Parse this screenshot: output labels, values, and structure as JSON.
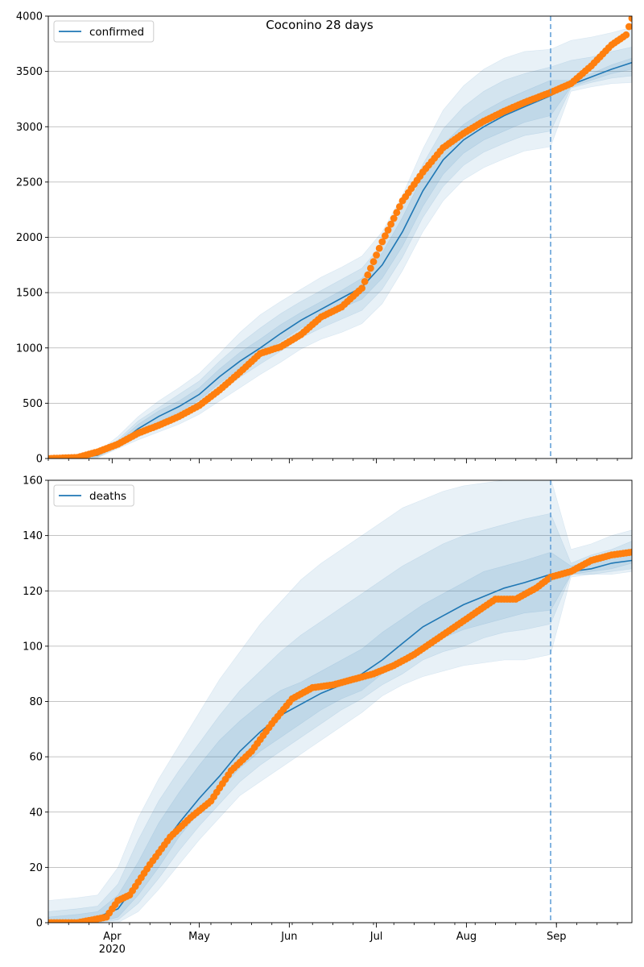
{
  "figure": {
    "suptitle": "Coconino 28 days"
  },
  "colors": {
    "model_line": "#1f77b4",
    "observed_points": "#ff7f0e",
    "band": "#1f77b4",
    "grid": "#b0b0b0",
    "forecast_marker": "#5b9bd5"
  },
  "x_axis": {
    "date_range": [
      "2020-03-10",
      "2020-09-27"
    ],
    "ticks": [
      {
        "date": "2020-04-01",
        "label": "Apr",
        "sublabel": "2020"
      },
      {
        "date": "2020-05-01",
        "label": "May",
        "sublabel": ""
      },
      {
        "date": "2020-06-01",
        "label": "Jun",
        "sublabel": ""
      },
      {
        "date": "2020-07-01",
        "label": "Jul",
        "sublabel": ""
      },
      {
        "date": "2020-08-01",
        "label": "Aug",
        "sublabel": ""
      },
      {
        "date": "2020-09-01",
        "label": "Sep",
        "sublabel": ""
      }
    ],
    "minor_tick_interval_days": 7,
    "forecast_start": "2020-08-30"
  },
  "chart_data": [
    {
      "type": "line",
      "title": "",
      "legend": {
        "label": "confirmed",
        "placement": "top-left"
      },
      "ylim": [
        0,
        4000
      ],
      "yticks": [
        0,
        500,
        1000,
        1500,
        2000,
        2500,
        3000,
        3500,
        4000
      ],
      "grid": "horizontal",
      "model_median": {
        "x": [
          "2020-03-10",
          "2020-03-20",
          "2020-03-27",
          "2020-04-03",
          "2020-04-10",
          "2020-04-17",
          "2020-04-24",
          "2020-05-01",
          "2020-05-08",
          "2020-05-15",
          "2020-05-22",
          "2020-05-29",
          "2020-06-05",
          "2020-06-12",
          "2020-06-19",
          "2020-06-26",
          "2020-07-03",
          "2020-07-10",
          "2020-07-17",
          "2020-07-24",
          "2020-07-31",
          "2020-08-07",
          "2020-08-14",
          "2020-08-21",
          "2020-08-30",
          "2020-09-06",
          "2020-09-13",
          "2020-09-20",
          "2020-09-27"
        ],
        "y": [
          0,
          5,
          30,
          130,
          270,
          380,
          470,
          580,
          740,
          880,
          1000,
          1130,
          1250,
          1350,
          1450,
          1550,
          1750,
          2050,
          2420,
          2700,
          2880,
          3000,
          3100,
          3180,
          3280,
          3380,
          3450,
          3520,
          3580
        ]
      },
      "bands": [
        {
          "level": "outer",
          "lower": [
            0,
            0,
            5,
            90,
            170,
            240,
            310,
            400,
            520,
            640,
            760,
            870,
            990,
            1080,
            1140,
            1220,
            1400,
            1700,
            2050,
            2330,
            2520,
            2630,
            2710,
            2780,
            2820,
            3320,
            3360,
            3390,
            3400
          ],
          "upper": [
            20,
            30,
            60,
            200,
            380,
            520,
            640,
            770,
            950,
            1140,
            1300,
            1420,
            1530,
            1640,
            1730,
            1830,
            2050,
            2380,
            2800,
            3150,
            3370,
            3520,
            3620,
            3680,
            3700,
            3780,
            3810,
            3850,
            3900
          ]
        },
        {
          "level": "middle",
          "lower": [
            0,
            0,
            12,
            100,
            195,
            285,
            365,
            465,
            605,
            735,
            855,
            970,
            1090,
            1180,
            1260,
            1340,
            1530,
            1820,
            2180,
            2460,
            2650,
            2770,
            2850,
            2920,
            2960,
            3350,
            3400,
            3440,
            3460
          ],
          "upper": [
            10,
            20,
            50,
            170,
            340,
            460,
            580,
            700,
            880,
            1040,
            1180,
            1310,
            1420,
            1520,
            1620,
            1720,
            1940,
            2260,
            2660,
            2980,
            3180,
            3320,
            3420,
            3480,
            3540,
            3600,
            3630,
            3680,
            3720
          ]
        },
        {
          "level": "inner",
          "lower": [
            0,
            0,
            20,
            110,
            220,
            330,
            420,
            530,
            680,
            820,
            940,
            1060,
            1180,
            1270,
            1360,
            1440,
            1630,
            1920,
            2280,
            2570,
            2760,
            2880,
            2960,
            3040,
            3100,
            3360,
            3420,
            3480,
            3520
          ],
          "upper": [
            5,
            12,
            40,
            150,
            310,
            430,
            520,
            640,
            810,
            960,
            1080,
            1210,
            1320,
            1420,
            1520,
            1630,
            1860,
            2180,
            2560,
            2840,
            3020,
            3140,
            3240,
            3320,
            3420,
            3420,
            3480,
            3560,
            3620
          ]
        }
      ],
      "observed": {
        "x": [
          "2020-03-10",
          "2020-03-20",
          "2020-03-27",
          "2020-04-03",
          "2020-04-10",
          "2020-04-17",
          "2020-04-24",
          "2020-05-01",
          "2020-05-08",
          "2020-05-15",
          "2020-05-22",
          "2020-05-29",
          "2020-06-05",
          "2020-06-12",
          "2020-06-19",
          "2020-06-26",
          "2020-07-03",
          "2020-07-10",
          "2020-07-17",
          "2020-07-24",
          "2020-07-31",
          "2020-08-07",
          "2020-08-14",
          "2020-08-21",
          "2020-08-30",
          "2020-09-06",
          "2020-09-13",
          "2020-09-20",
          "2020-09-25",
          "2020-09-27"
        ],
        "y": [
          0,
          10,
          60,
          130,
          230,
          300,
          380,
          480,
          620,
          780,
          950,
          1010,
          1120,
          1280,
          1370,
          1540,
          1960,
          2330,
          2590,
          2810,
          2940,
          3050,
          3140,
          3220,
          3310,
          3390,
          3550,
          3740,
          3830,
          3980
        ]
      }
    },
    {
      "type": "line",
      "title": "",
      "legend": {
        "label": "deaths",
        "placement": "top-left"
      },
      "ylim": [
        0,
        160
      ],
      "yticks": [
        0,
        20,
        40,
        60,
        80,
        100,
        120,
        140,
        160
      ],
      "grid": "horizontal",
      "model_median": {
        "x": [
          "2020-03-10",
          "2020-03-20",
          "2020-03-27",
          "2020-04-03",
          "2020-04-10",
          "2020-04-17",
          "2020-04-24",
          "2020-05-01",
          "2020-05-08",
          "2020-05-15",
          "2020-05-22",
          "2020-05-29",
          "2020-06-05",
          "2020-06-12",
          "2020-06-19",
          "2020-06-26",
          "2020-07-03",
          "2020-07-10",
          "2020-07-17",
          "2020-07-24",
          "2020-07-31",
          "2020-08-07",
          "2020-08-14",
          "2020-08-21",
          "2020-08-30",
          "2020-09-06",
          "2020-09-13",
          "2020-09-20",
          "2020-09-27"
        ],
        "y": [
          0,
          0,
          2,
          5,
          15,
          26,
          36,
          45,
          53,
          62,
          69,
          75,
          79,
          83,
          86,
          90,
          95,
          101,
          107,
          111,
          115,
          118,
          121,
          123,
          126,
          127,
          128,
          130,
          131
        ]
      },
      "bands": [
        {
          "level": "outer",
          "lower": [
            0,
            0,
            0,
            0,
            4,
            12,
            21,
            30,
            38,
            46,
            51,
            56,
            61,
            66,
            71,
            76,
            82,
            86,
            89,
            91,
            93,
            94,
            95,
            95,
            97,
            125,
            126,
            126,
            127
          ],
          "upper": [
            8,
            9,
            10,
            20,
            38,
            52,
            64,
            76,
            88,
            98,
            108,
            116,
            124,
            130,
            135,
            140,
            145,
            150,
            153,
            156,
            158,
            159,
            160,
            160,
            161,
            135,
            137,
            140,
            142
          ]
        },
        {
          "level": "middle",
          "lower": [
            0,
            0,
            0,
            1,
            7,
            16,
            26,
            35,
            43,
            51,
            57,
            62,
            67,
            72,
            77,
            81,
            86,
            90,
            95,
            98,
            100,
            103,
            105,
            106,
            108,
            126,
            126,
            127,
            128
          ],
          "upper": [
            4,
            5,
            6,
            14,
            30,
            44,
            55,
            65,
            75,
            84,
            91,
            98,
            104,
            109,
            114,
            119,
            124,
            129,
            133,
            137,
            140,
            142,
            144,
            146,
            148,
            130,
            133,
            135,
            138
          ]
        },
        {
          "level": "inner",
          "lower": [
            0,
            0,
            0,
            2,
            10,
            20,
            31,
            40,
            48,
            56,
            62,
            67,
            72,
            77,
            81,
            84,
            90,
            95,
            99,
            103,
            106,
            108,
            110,
            112,
            113,
            126,
            127,
            128,
            130
          ],
          "upper": [
            2,
            3,
            4,
            10,
            22,
            36,
            47,
            57,
            66,
            73,
            79,
            84,
            87,
            91,
            95,
            99,
            105,
            110,
            115,
            119,
            123,
            127,
            129,
            131,
            134,
            129,
            131,
            133,
            135
          ]
        }
      ],
      "observed": {
        "x": [
          "2020-03-10",
          "2020-03-20",
          "2020-03-25",
          "2020-03-30",
          "2020-04-03",
          "2020-04-07",
          "2020-04-14",
          "2020-04-21",
          "2020-04-28",
          "2020-05-05",
          "2020-05-12",
          "2020-05-19",
          "2020-05-26",
          "2020-06-02",
          "2020-06-09",
          "2020-06-16",
          "2020-06-23",
          "2020-06-30",
          "2020-07-07",
          "2020-07-14",
          "2020-07-21",
          "2020-07-28",
          "2020-08-04",
          "2020-08-11",
          "2020-08-18",
          "2020-08-25",
          "2020-08-30",
          "2020-09-06",
          "2020-09-13",
          "2020-09-20",
          "2020-09-27"
        ],
        "y": [
          0,
          0,
          1,
          2,
          8,
          10,
          21,
          31,
          38,
          44,
          55,
          62,
          72,
          81,
          85,
          86,
          88,
          90,
          93,
          97,
          102,
          107,
          112,
          117,
          117,
          121,
          125,
          127,
          131,
          133,
          134
        ]
      }
    }
  ]
}
